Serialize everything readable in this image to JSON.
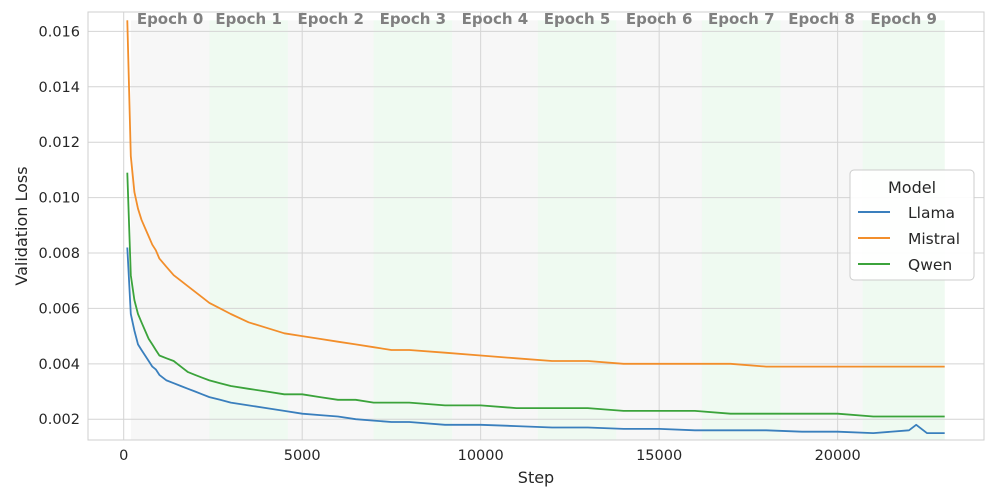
{
  "chart_data": {
    "type": "line",
    "title": "",
    "xlabel": "Step",
    "ylabel": "Validation Loss",
    "xlim": [
      -1000,
      24100
    ],
    "ylim": [
      0.00125,
      0.0167
    ],
    "xticks": [
      {
        "value": 0,
        "label": "0"
      },
      {
        "value": 5000,
        "label": "5000"
      },
      {
        "value": 10000,
        "label": "10000"
      },
      {
        "value": 15000,
        "label": "15000"
      },
      {
        "value": 20000,
        "label": "20000"
      }
    ],
    "yticks": [
      {
        "value": 0.002,
        "label": "0.002"
      },
      {
        "value": 0.004,
        "label": "0.004"
      },
      {
        "value": 0.006,
        "label": "0.006"
      },
      {
        "value": 0.008,
        "label": "0.008"
      },
      {
        "value": 0.01,
        "label": "0.010"
      },
      {
        "value": 0.012,
        "label": "0.012"
      },
      {
        "value": 0.014,
        "label": "0.014"
      },
      {
        "value": 0.016,
        "label": "0.016"
      }
    ],
    "grid": true,
    "epochs": [
      {
        "label": "Epoch 0",
        "start": 200,
        "end": 2400,
        "color": "#ebebeb"
      },
      {
        "label": "Epoch 1",
        "start": 2400,
        "end": 4600,
        "color": "#d8f2de"
      },
      {
        "label": "Epoch 2",
        "start": 4600,
        "end": 7000,
        "color": "#ebebeb"
      },
      {
        "label": "Epoch 3",
        "start": 7000,
        "end": 9200,
        "color": "#d8f2de"
      },
      {
        "label": "Epoch 4",
        "start": 9200,
        "end": 11600,
        "color": "#ebebeb"
      },
      {
        "label": "Epoch 5",
        "start": 11600,
        "end": 13800,
        "color": "#d8f2de"
      },
      {
        "label": "Epoch 6",
        "start": 13800,
        "end": 16200,
        "color": "#ebebeb"
      },
      {
        "label": "Epoch 7",
        "start": 16200,
        "end": 18400,
        "color": "#d8f2de"
      },
      {
        "label": "Epoch 8",
        "start": 18400,
        "end": 20700,
        "color": "#ebebeb"
      },
      {
        "label": "Epoch 9",
        "start": 20700,
        "end": 23000,
        "color": "#d8f2de"
      }
    ],
    "legend": {
      "title": "Model",
      "position": "center-right"
    },
    "series": [
      {
        "name": "Llama",
        "color": "#3a7fbd",
        "x": [
          100,
          200,
          300,
          400,
          500,
          600,
          700,
          800,
          900,
          1000,
          1200,
          1400,
          1600,
          1800,
          2000,
          2200,
          2400,
          2700,
          3000,
          3500,
          4000,
          4500,
          5000,
          5500,
          6000,
          6500,
          7000,
          7500,
          8000,
          9000,
          10000,
          11000,
          12000,
          13000,
          14000,
          15000,
          16000,
          17000,
          18000,
          19000,
          20000,
          21000,
          22000,
          22200,
          22500,
          23000
        ],
        "y": [
          0.0082,
          0.0058,
          0.0052,
          0.0047,
          0.0045,
          0.0043,
          0.0041,
          0.0039,
          0.0038,
          0.0036,
          0.0034,
          0.0033,
          0.0032,
          0.0031,
          0.003,
          0.0029,
          0.0028,
          0.0027,
          0.0026,
          0.0025,
          0.0024,
          0.0023,
          0.0022,
          0.00215,
          0.0021,
          0.002,
          0.00195,
          0.0019,
          0.0019,
          0.0018,
          0.0018,
          0.00175,
          0.0017,
          0.0017,
          0.00165,
          0.00165,
          0.0016,
          0.0016,
          0.0016,
          0.00155,
          0.00155,
          0.0015,
          0.0016,
          0.0018,
          0.0015,
          0.0015
        ]
      },
      {
        "name": "Mistral",
        "color": "#f28e2b",
        "x": [
          100,
          200,
          300,
          400,
          500,
          600,
          700,
          800,
          900,
          1000,
          1200,
          1400,
          1600,
          1800,
          2000,
          2200,
          2400,
          2700,
          3000,
          3500,
          4000,
          4500,
          5000,
          5500,
          6000,
          6500,
          7000,
          7500,
          8000,
          9000,
          10000,
          11000,
          12000,
          13000,
          14000,
          15000,
          16000,
          17000,
          18000,
          19000,
          20000,
          21000,
          22000,
          23000
        ],
        "y": [
          0.0164,
          0.0115,
          0.0102,
          0.0096,
          0.0092,
          0.0089,
          0.0086,
          0.0083,
          0.0081,
          0.0078,
          0.0075,
          0.0072,
          0.007,
          0.0068,
          0.0066,
          0.0064,
          0.0062,
          0.006,
          0.0058,
          0.0055,
          0.0053,
          0.0051,
          0.005,
          0.0049,
          0.0048,
          0.0047,
          0.0046,
          0.0045,
          0.0045,
          0.0044,
          0.0043,
          0.0042,
          0.0041,
          0.0041,
          0.004,
          0.004,
          0.004,
          0.004,
          0.0039,
          0.0039,
          0.0039,
          0.0039,
          0.0039,
          0.0039
        ]
      },
      {
        "name": "Qwen",
        "color": "#3ba33b",
        "x": [
          100,
          200,
          300,
          400,
          500,
          600,
          700,
          800,
          900,
          1000,
          1200,
          1400,
          1600,
          1800,
          2000,
          2200,
          2400,
          2700,
          3000,
          3500,
          4000,
          4500,
          5000,
          5500,
          6000,
          6500,
          7000,
          7500,
          8000,
          9000,
          10000,
          11000,
          12000,
          13000,
          14000,
          15000,
          16000,
          17000,
          18000,
          19000,
          20000,
          21000,
          22000,
          23000
        ],
        "y": [
          0.0109,
          0.0072,
          0.0063,
          0.0058,
          0.0055,
          0.0052,
          0.0049,
          0.0047,
          0.0045,
          0.0043,
          0.0042,
          0.0041,
          0.0039,
          0.0037,
          0.0036,
          0.0035,
          0.0034,
          0.0033,
          0.0032,
          0.0031,
          0.003,
          0.0029,
          0.0029,
          0.0028,
          0.0027,
          0.0027,
          0.0026,
          0.0026,
          0.0026,
          0.0025,
          0.0025,
          0.0024,
          0.0024,
          0.0024,
          0.0023,
          0.0023,
          0.0023,
          0.0022,
          0.0022,
          0.0022,
          0.0022,
          0.0021,
          0.0021,
          0.0021
        ]
      }
    ]
  }
}
